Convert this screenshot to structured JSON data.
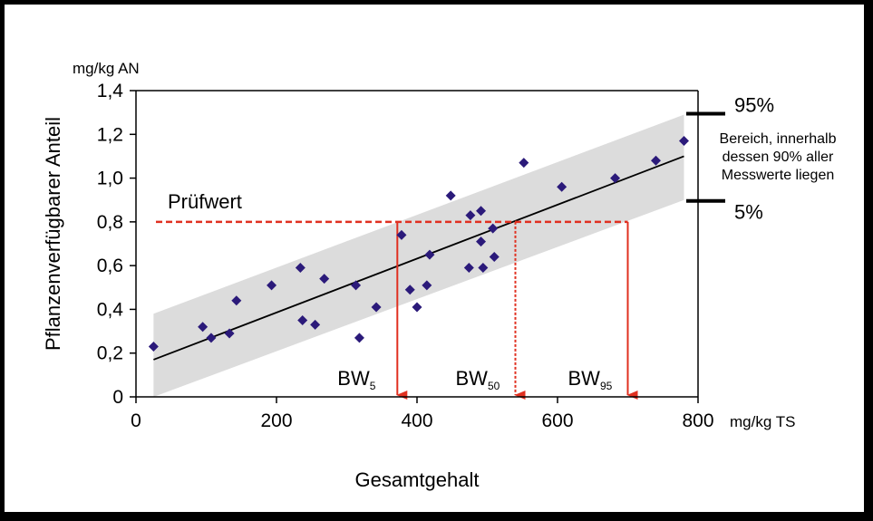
{
  "chart_data": {
    "type": "scatter",
    "y_unit_label": "mg/kg AN",
    "x_unit_label": "mg/kg TS",
    "xlabel": "Gesamtgehalt",
    "ylabel": "Pflanzenverfügbarer Anteil",
    "xlim": [
      0,
      800
    ],
    "ylim": [
      0,
      1.4
    ],
    "x_ticks": [
      0,
      200,
      400,
      600,
      800
    ],
    "x_tick_labels": [
      "0",
      "200",
      "400",
      "600",
      "800"
    ],
    "y_ticks": [
      0,
      0.2,
      0.4,
      0.6,
      0.8,
      1.0,
      1.2,
      1.4
    ],
    "y_tick_labels": [
      "0",
      "0,2",
      "0,4",
      "0,6",
      "0,8",
      "1,0",
      "1,2",
      "1,4"
    ],
    "grid": false,
    "points": [
      [
        25,
        0.23
      ],
      [
        95,
        0.32
      ],
      [
        107,
        0.27
      ],
      [
        133,
        0.29
      ],
      [
        143,
        0.44
      ],
      [
        193,
        0.51
      ],
      [
        234,
        0.59
      ],
      [
        237,
        0.35
      ],
      [
        255,
        0.33
      ],
      [
        268,
        0.54
      ],
      [
        313,
        0.51
      ],
      [
        318,
        0.27
      ],
      [
        342,
        0.41
      ],
      [
        378,
        0.74
      ],
      [
        390,
        0.49
      ],
      [
        400,
        0.41
      ],
      [
        414,
        0.51
      ],
      [
        418,
        0.65
      ],
      [
        448,
        0.92
      ],
      [
        474,
        0.59
      ],
      [
        476,
        0.83
      ],
      [
        491,
        0.85
      ],
      [
        491,
        0.71
      ],
      [
        494,
        0.59
      ],
      [
        508,
        0.77
      ],
      [
        510,
        0.64
      ],
      [
        552,
        1.07
      ],
      [
        606,
        0.96
      ],
      [
        682,
        1.0
      ],
      [
        740,
        1.08
      ],
      [
        780,
        1.17
      ]
    ],
    "point_color": "#2b1a7a",
    "regression": {
      "x": [
        25,
        780
      ],
      "y": [
        0.17,
        1.1
      ]
    },
    "band": {
      "x": [
        25,
        780
      ],
      "lower": [
        0.0,
        0.9
      ],
      "upper": [
        0.38,
        1.29
      ]
    },
    "band_color": "#dcdcdc",
    "threshold": {
      "label": "Prüfwert",
      "value": 0.8,
      "color": "#e03020"
    },
    "bw_markers": [
      {
        "base": "BW",
        "sub": "5",
        "x": 372
      },
      {
        "base": "BW",
        "sub": "50",
        "x": 540
      },
      {
        "base": "BW",
        "sub": "95",
        "x": 700
      }
    ],
    "band_legend": {
      "upper_label": "95%",
      "lower_label": "5%",
      "note_lines": [
        "Bereich, innerhalb",
        "dessen 90% aller",
        "Messwerte liegen"
      ]
    }
  }
}
